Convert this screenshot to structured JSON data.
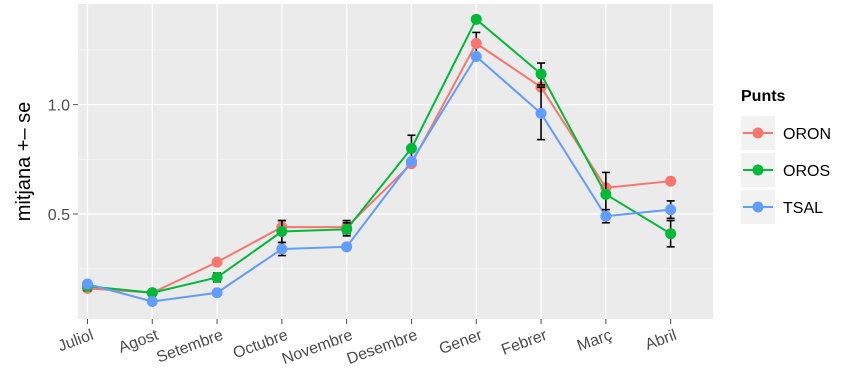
{
  "chart_data": {
    "type": "line",
    "categories": [
      "Juliol",
      "Agost",
      "Setembre",
      "Octubre",
      "Novembre",
      "Desembre",
      "Gener",
      "Febrer",
      "Març",
      "Abril"
    ],
    "series": [
      {
        "name": "ORON",
        "color": "#F8766D",
        "values": [
          0.16,
          0.14,
          0.28,
          0.44,
          0.44,
          0.73,
          1.28,
          1.08,
          0.62,
          0.65
        ],
        "se": [
          0.0,
          0.0,
          0.01,
          0.03,
          0.03,
          0.0,
          0.05,
          0.0,
          0.0,
          0.0
        ]
      },
      {
        "name": "OROS",
        "color": "#00BA38",
        "values": [
          0.17,
          0.14,
          0.21,
          0.42,
          0.43,
          0.8,
          1.39,
          1.14,
          0.59,
          0.41
        ],
        "se": [
          0.02,
          0.0,
          0.02,
          0.05,
          0.03,
          0.06,
          0.0,
          0.05,
          0.1,
          0.06
        ]
      },
      {
        "name": "TSAL",
        "color": "#619CFF",
        "values": [
          0.18,
          0.1,
          0.14,
          0.34,
          0.35,
          0.74,
          1.22,
          0.96,
          0.49,
          0.52
        ],
        "se": [
          0.0,
          0.0,
          0.0,
          0.03,
          0.0,
          0.0,
          0.0,
          0.12,
          0.03,
          0.04
        ]
      }
    ],
    "ylabel": "mitjana +– se",
    "xlabel": "",
    "y_ticks": [
      0.5,
      1.0
    ],
    "y_tick_labels": [
      "0.5",
      "1.0"
    ],
    "ylim": [
      0.02,
      1.46
    ],
    "grid": true,
    "legend": {
      "title": "Punts",
      "position": "right"
    }
  }
}
